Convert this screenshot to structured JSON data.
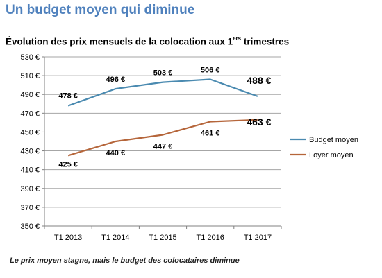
{
  "headline": "Un budget moyen qui diminue",
  "caption": "Le prix moyen stagne, mais le budget des colocataires diminue",
  "chart_data": {
    "type": "line",
    "title": "Évolution des prix mensuels de la colocation aux 1",
    "title_sup": "ers",
    "title_end": " trimestres",
    "categories": [
      "T1 2013",
      "T1 2014",
      "T1 2015",
      "T1 2016",
      "T1 2017"
    ],
    "ylim": [
      350,
      530
    ],
    "y_ticks": [
      "350 €",
      "370 €",
      "390 €",
      "410 €",
      "430 €",
      "450 €",
      "470 €",
      "490 €",
      "510 €",
      "530 €"
    ],
    "grid": true,
    "legend_position": "right",
    "series": [
      {
        "name": "Budget moyen",
        "color": "#4a8ab0",
        "values": [
          478,
          496,
          503,
          506,
          488
        ],
        "labels": [
          "478 €",
          "496 €",
          "503 €",
          "506 €",
          "488 €"
        ]
      },
      {
        "name": "Loyer moyen",
        "color": "#b5653a",
        "values": [
          425,
          440,
          447,
          461,
          463
        ],
        "labels": [
          "425 €",
          "440 €",
          "447 €",
          "461 €",
          "463 €"
        ]
      }
    ]
  }
}
